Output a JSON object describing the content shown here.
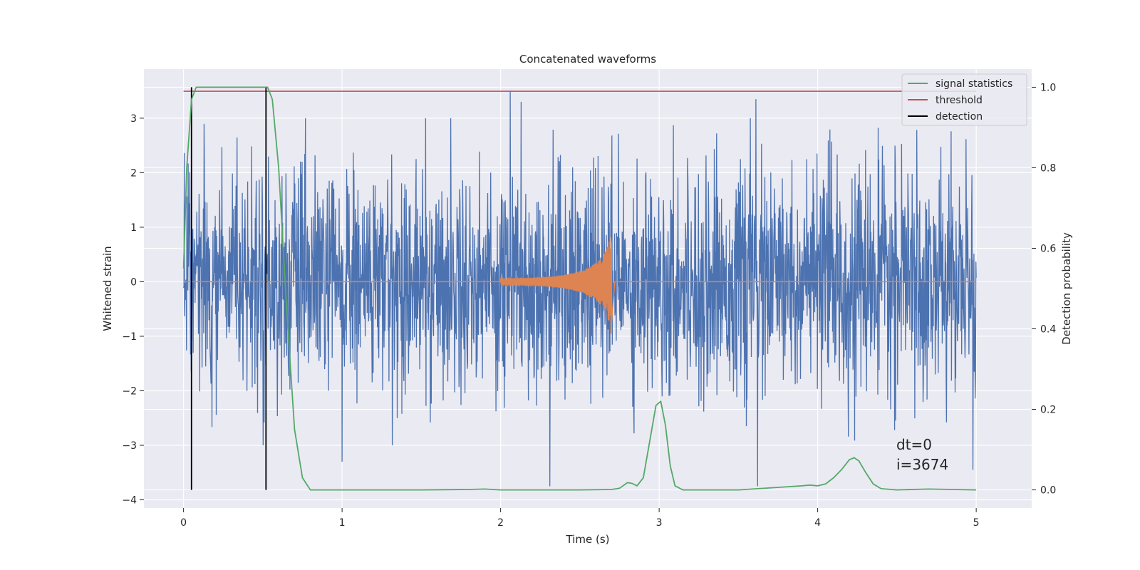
{
  "chart_data": {
    "type": "line",
    "title": "Concatenated waveforms",
    "xlabel": "Time (s)",
    "ylabel": "Whitened strain",
    "ylabel_right": "Detection probability",
    "xlim": [
      -0.25,
      5.35
    ],
    "ylim": [
      -4.15,
      3.9
    ],
    "ylim_right": [
      -0.045,
      1.045
    ],
    "xticks": [
      0,
      1,
      2,
      3,
      4,
      5
    ],
    "yticks": [
      -4,
      -3,
      -2,
      -1,
      0,
      1,
      2,
      3
    ],
    "yticks_right": [
      0.0,
      0.2,
      0.4,
      0.6,
      0.8,
      1.0
    ],
    "xtick_labels": [
      "0",
      "1",
      "2",
      "3",
      "4",
      "5"
    ],
    "ytick_labels": [
      "−4",
      "−3",
      "−2",
      "−1",
      "0",
      "1",
      "2",
      "3"
    ],
    "ytick_labels_right": [
      "0.0",
      "0.2",
      "0.4",
      "0.6",
      "0.8",
      "1.0"
    ],
    "grid": true,
    "legend_position": "top-right",
    "legend": [
      "signal statistics",
      "threshold",
      "detection"
    ],
    "series": [
      {
        "name": "signal statistics",
        "axis": "right",
        "color": "#55a868",
        "x": [
          0.0,
          0.02,
          0.05,
          0.08,
          0.12,
          0.2,
          0.3,
          0.4,
          0.5,
          0.53,
          0.56,
          0.6,
          0.65,
          0.7,
          0.75,
          0.8,
          1.0,
          1.5,
          1.8,
          1.9,
          2.0,
          2.5,
          2.7,
          2.75,
          2.8,
          2.83,
          2.86,
          2.9,
          2.94,
          2.98,
          3.01,
          3.04,
          3.07,
          3.1,
          3.15,
          3.5,
          3.9,
          3.95,
          4.0,
          4.05,
          4.1,
          4.15,
          4.2,
          4.23,
          4.26,
          4.3,
          4.35,
          4.4,
          4.5,
          4.7,
          5.0
        ],
        "y": [
          0.55,
          0.8,
          0.97,
          1.0,
          1.0,
          1.0,
          1.0,
          1.0,
          1.0,
          1.0,
          0.97,
          0.8,
          0.45,
          0.15,
          0.03,
          0.0,
          0.0,
          0.0,
          0.001,
          0.002,
          0.0,
          0.0,
          0.001,
          0.004,
          0.018,
          0.016,
          0.01,
          0.03,
          0.12,
          0.21,
          0.22,
          0.16,
          0.06,
          0.01,
          0.0,
          0.0,
          0.01,
          0.012,
          0.01,
          0.015,
          0.03,
          0.05,
          0.075,
          0.08,
          0.072,
          0.045,
          0.015,
          0.003,
          0.0,
          0.002,
          0.0
        ]
      },
      {
        "name": "threshold",
        "axis": "right",
        "color": "#c44e52",
        "x": [
          0.0,
          5.0
        ],
        "y": [
          0.99,
          0.99
        ]
      },
      {
        "name": "detection",
        "axis": "right",
        "color": "#000000",
        "x_positions": [
          0.05,
          0.52
        ],
        "y_range": [
          0.0,
          1.0
        ]
      },
      {
        "axis": "left",
        "color": "#4c72b0",
        "description_range": [
          0.0,
          5.0
        ],
        "typical_amplitude": 1.0,
        "extremes": [
          {
            "x": 2.06,
            "y": 3.5
          },
          {
            "x": 2.13,
            "y": 3.3
          },
          {
            "x": 3.61,
            "y": 3.35
          },
          {
            "x": 2.31,
            "y": -3.75
          },
          {
            "x": 3.62,
            "y": -3.75
          },
          {
            "x": 1.0,
            "y": -3.3
          },
          {
            "x": 4.98,
            "y": -3.45
          }
        ]
      },
      {
        "axis": "left",
        "color": "#dd8452",
        "x_start": 2.0,
        "x_end": 2.7,
        "peak_amplitude": 1.0,
        "baseline": 0.0
      }
    ],
    "annotations": [
      "dt=0",
      "i=3674"
    ]
  }
}
